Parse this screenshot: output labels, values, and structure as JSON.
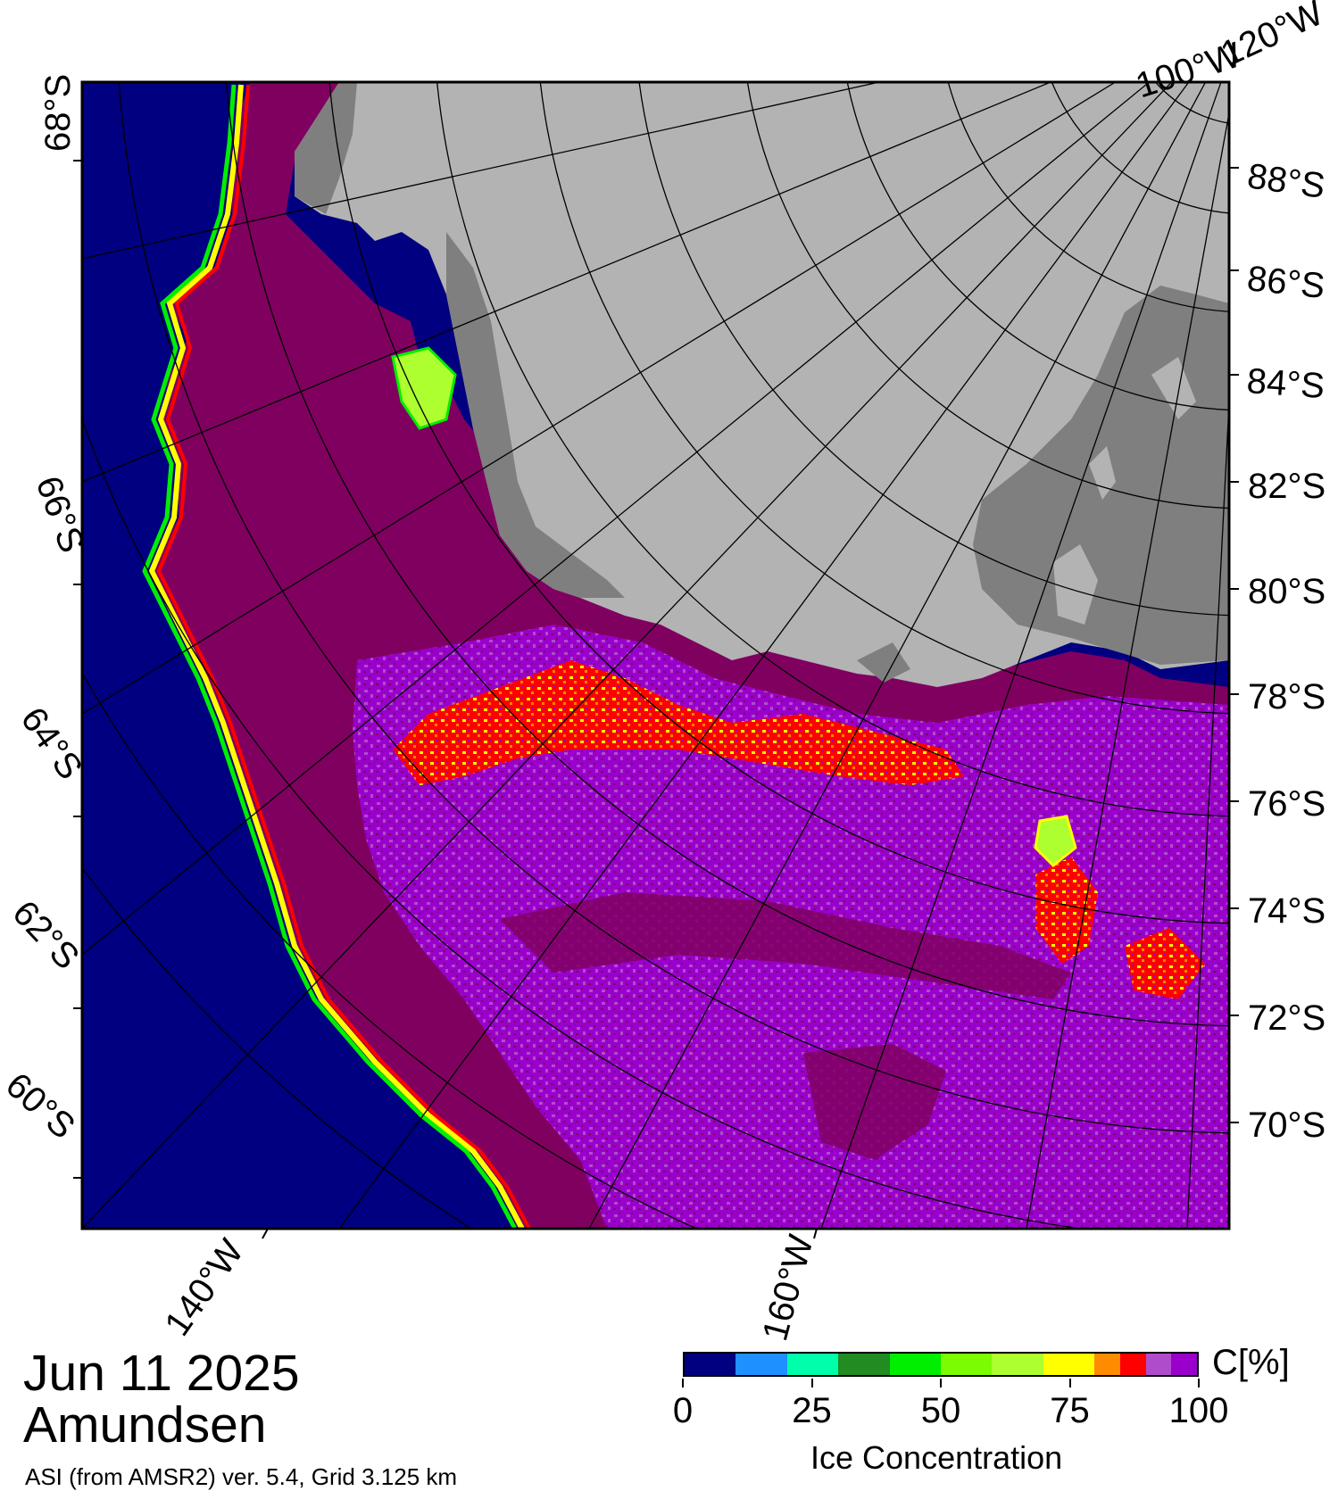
{
  "header": {
    "date": "Jun 11 2025",
    "region": "Amundsen"
  },
  "footer": {
    "source_text": "ASI (from AMSR2) ver. 5.4,  Grid 3.125 km"
  },
  "map": {
    "latitude_labels_right": [
      "88°S",
      "86°S",
      "84°S",
      "82°S",
      "80°S",
      "78°S",
      "76°S",
      "74°S",
      "72°S",
      "70°S"
    ],
    "latitude_labels_left": [
      "68°S",
      "66°S",
      "64°S",
      "62°S",
      "60°S"
    ],
    "longitude_labels": [
      "140°W",
      "160°W",
      "100°W",
      "120°W"
    ],
    "colors": {
      "open_water": "#000080",
      "land_ice_shelf": "#b3b3b3",
      "land_dark": "#7f7f7f",
      "ice_high": "#800060",
      "ice_95": "#9900cc",
      "ice_90": "#b04ccc",
      "ice_85": "#ff0000",
      "ice_80": "#ff8000",
      "ice_75": "#ffff00"
    }
  },
  "legend": {
    "unit": "C[%]",
    "title": "Ice Concentration",
    "ticks": [
      "0",
      "25",
      "50",
      "75",
      "100"
    ],
    "colors": [
      "#000080",
      "#1e90ff",
      "#00ffaa",
      "#228b22",
      "#00ee00",
      "#7cfc00",
      "#adff2f",
      "#ffff00",
      "#ff8c00",
      "#ff0000",
      "#b04ccc",
      "#9900cc"
    ]
  }
}
